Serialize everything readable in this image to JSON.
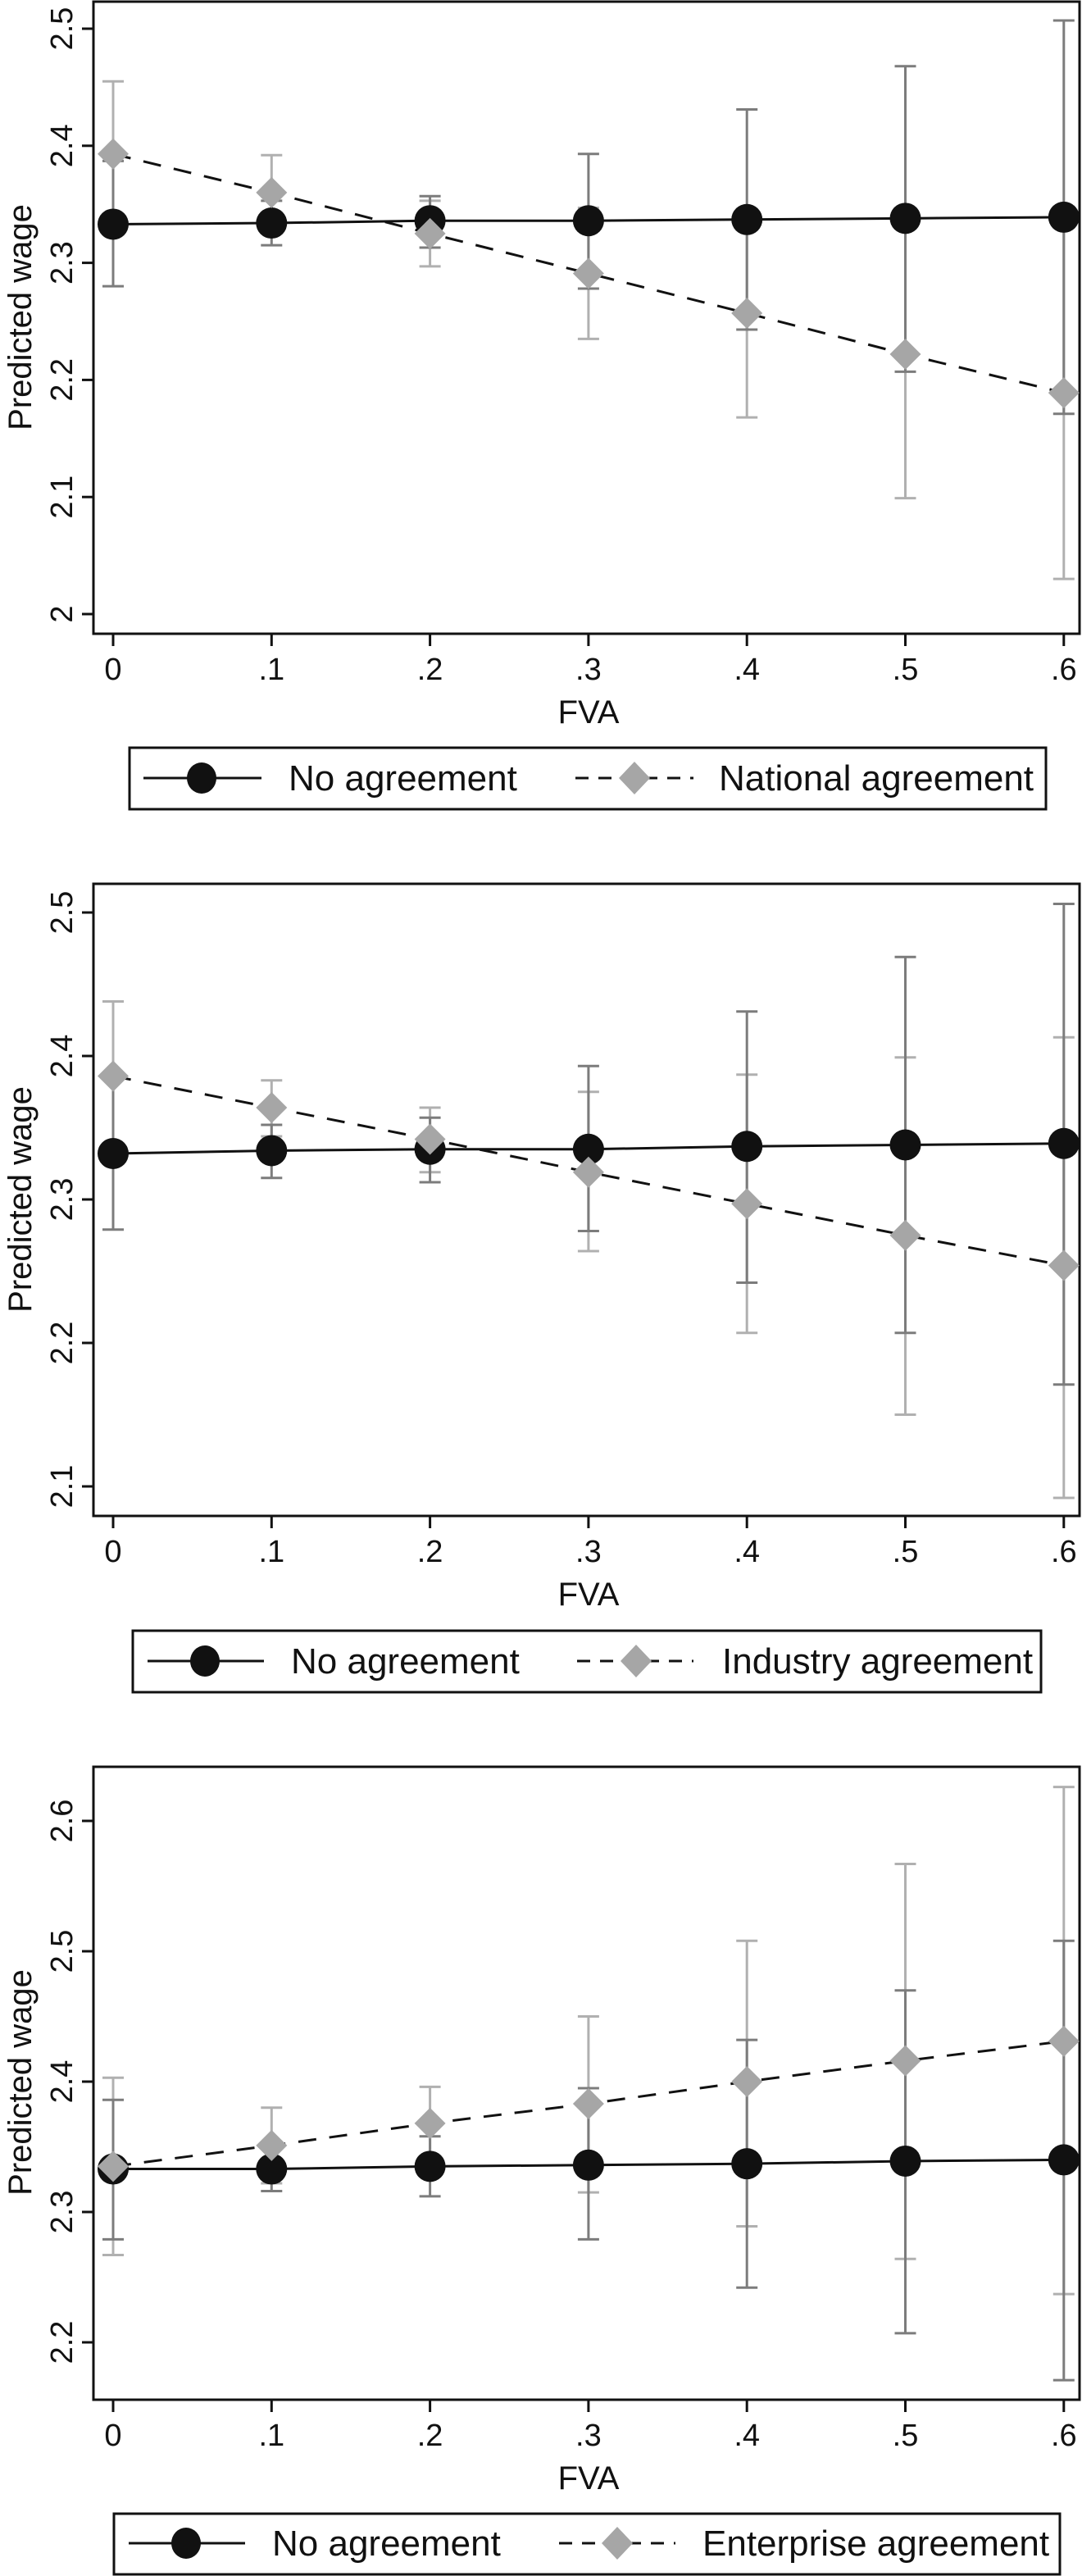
{
  "colors": {
    "axis": "#111111",
    "no_agreement_marker": "#111111",
    "agreement_marker": "#a6a6a6",
    "no_agreement_ci": "#7c7c7c",
    "agreement_ci": "#b0b0b0",
    "background": "#ffffff"
  },
  "chart_data": [
    {
      "type": "line",
      "title": "",
      "xlabel": "FVA",
      "ylabel": "Predicted wage",
      "x": [
        0,
        0.1,
        0.2,
        0.3,
        0.4,
        0.5,
        0.6
      ],
      "x_tick_labels": [
        "0",
        ".1",
        ".2",
        ".3",
        ".4",
        ".5",
        ".6"
      ],
      "y_ticks": [
        2,
        2.1,
        2.2,
        2.3,
        2.4,
        2.5
      ],
      "y_tick_labels": [
        "2",
        "2.1",
        "2.2",
        "2.3",
        "2.4",
        "2.5"
      ],
      "ylim": [
        1.985,
        2.52
      ],
      "grid": false,
      "legend_position": "bottom",
      "series": [
        {
          "name": "No agreement",
          "marker": "circle",
          "line": "solid",
          "values": [
            2.333,
            2.334,
            2.336,
            2.336,
            2.337,
            2.338,
            2.339
          ],
          "ci_low": [
            2.28,
            2.315,
            2.313,
            2.278,
            2.243,
            2.207,
            2.171
          ],
          "ci_high": [
            2.387,
            2.353,
            2.357,
            2.393,
            2.431,
            2.468,
            2.507
          ]
        },
        {
          "name": "National agreement",
          "marker": "diamond",
          "line": "dashed",
          "values": [
            2.393,
            2.36,
            2.325,
            2.291,
            2.257,
            2.222,
            2.189
          ],
          "ci_low": [
            2.331,
            2.328,
            2.297,
            2.235,
            2.168,
            2.099,
            2.03
          ],
          "ci_high": [
            2.455,
            2.392,
            2.353,
            2.347,
            2.346,
            2.345,
            2.348
          ]
        }
      ]
    },
    {
      "type": "line",
      "title": "",
      "xlabel": "FVA",
      "ylabel": "Predicted wage",
      "x": [
        0,
        0.1,
        0.2,
        0.3,
        0.4,
        0.5,
        0.6
      ],
      "x_tick_labels": [
        "0",
        ".1",
        ".2",
        ".3",
        ".4",
        ".5",
        ".6"
      ],
      "y_ticks": [
        2.1,
        2.2,
        2.3,
        2.4,
        2.5
      ],
      "y_tick_labels": [
        "2.1",
        "2.2",
        "2.3",
        "2.4",
        "2.5"
      ],
      "ylim": [
        2.078,
        2.521
      ],
      "grid": false,
      "legend_position": "bottom",
      "series": [
        {
          "name": "No agreement",
          "marker": "circle",
          "line": "solid",
          "values": [
            2.332,
            2.334,
            2.335,
            2.335,
            2.337,
            2.338,
            2.339
          ],
          "ci_low": [
            2.279,
            2.315,
            2.312,
            2.278,
            2.242,
            2.207,
            2.171
          ],
          "ci_high": [
            2.386,
            2.352,
            2.357,
            2.393,
            2.431,
            2.469,
            2.506
          ]
        },
        {
          "name": "Industry agreement",
          "marker": "diamond",
          "line": "dashed",
          "values": [
            2.386,
            2.364,
            2.342,
            2.319,
            2.297,
            2.275,
            2.254
          ],
          "ci_low": [
            2.334,
            2.344,
            2.319,
            2.264,
            2.207,
            2.15,
            2.092
          ],
          "ci_high": [
            2.438,
            2.383,
            2.364,
            2.375,
            2.387,
            2.399,
            2.413
          ]
        }
      ]
    },
    {
      "type": "line",
      "title": "",
      "xlabel": "FVA",
      "ylabel": "Predicted wage",
      "x": [
        0,
        0.1,
        0.2,
        0.3,
        0.4,
        0.5,
        0.6
      ],
      "x_tick_labels": [
        "0",
        ".1",
        ".2",
        ".3",
        ".4",
        ".5",
        ".6"
      ],
      "y_ticks": [
        2.2,
        2.3,
        2.4,
        2.5,
        2.6
      ],
      "y_tick_labels": [
        "2.2",
        "2.3",
        "2.4",
        "2.5",
        "2.6"
      ],
      "ylim": [
        2.156,
        2.64
      ],
      "grid": false,
      "legend_position": "bottom",
      "series": [
        {
          "name": "No agreement",
          "marker": "circle",
          "line": "solid",
          "values": [
            2.333,
            2.333,
            2.335,
            2.336,
            2.337,
            2.339,
            2.34
          ],
          "ci_low": [
            2.279,
            2.316,
            2.312,
            2.279,
            2.242,
            2.207,
            2.171
          ],
          "ci_high": [
            2.386,
            2.35,
            2.358,
            2.395,
            2.432,
            2.47,
            2.508
          ]
        },
        {
          "name": "Enterprise agreement",
          "marker": "diamond",
          "line": "dashed",
          "values": [
            2.335,
            2.351,
            2.368,
            2.383,
            2.4,
            2.416,
            2.431
          ],
          "ci_low": [
            2.267,
            2.322,
            2.34,
            2.315,
            2.289,
            2.264,
            2.237
          ],
          "ci_high": [
            2.403,
            2.38,
            2.396,
            2.45,
            2.508,
            2.567,
            2.626
          ]
        }
      ]
    }
  ],
  "panels": [
    {
      "y_axis_title": "Predicted wage",
      "x_axis_title": "FVA",
      "legend": {
        "item1": "No agreement",
        "item2": "National agreement"
      }
    },
    {
      "y_axis_title": "Predicted wage",
      "x_axis_title": "FVA",
      "legend": {
        "item1": "No agreement",
        "item2": "Industry agreement"
      }
    },
    {
      "y_axis_title": "Predicted wage",
      "x_axis_title": "FVA",
      "legend": {
        "item1": "No agreement",
        "item2": "Enterprise agreement"
      }
    }
  ]
}
